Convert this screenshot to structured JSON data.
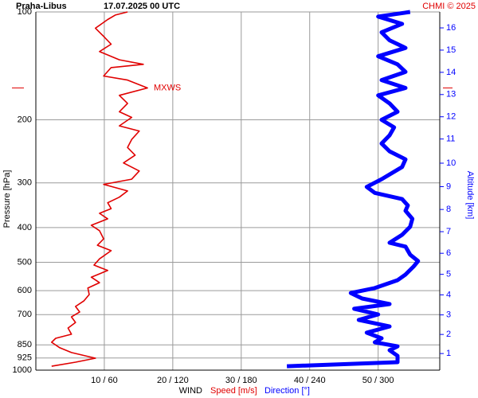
{
  "chart_data": {
    "type": "profile",
    "station": "Praha-Libus",
    "time": "17.07.2025 00 UTC",
    "credit": "CHMI © 2025",
    "ylabel": "Pressure [hPa]",
    "y2label": "Altitude [km]",
    "xlabel": "WIND",
    "ylim": [
      100,
      1000
    ],
    "y_log": true,
    "y_inverted": true,
    "yticks": [
      100,
      200,
      300,
      400,
      500,
      600,
      700,
      850,
      925,
      1000
    ],
    "xlim": [
      0,
      59
    ],
    "x2lim": [
      0,
      354
    ],
    "xticks": [
      {
        "value": 10,
        "label": "10 / 60"
      },
      {
        "value": 20,
        "label": "20 / 120"
      },
      {
        "value": 30,
        "label": "30 / 180"
      },
      {
        "value": 40,
        "label": "40 / 240"
      },
      {
        "value": 50,
        "label": "50 / 300"
      }
    ],
    "y2ticks": [
      1,
      2,
      3,
      4,
      5,
      6,
      7,
      8,
      9,
      10,
      11,
      12,
      13,
      14,
      15,
      16
    ],
    "grid": true,
    "mxws": {
      "label": "MXWS",
      "pressure": 163
    },
    "series": [
      {
        "name": "Speed [m/s]",
        "color": "#e00000",
        "pressure": [
          975,
          950,
          926,
          893,
          866,
          836,
          815,
          794,
          763,
          736,
          710,
          688,
          664,
          641,
          615,
          590,
          570,
          550,
          527,
          509,
          489,
          464,
          448,
          430,
          408,
          394,
          378,
          365,
          354,
          341,
          329,
          316,
          303,
          293,
          278,
          264,
          251,
          239,
          227,
          215,
          208,
          197,
          190,
          180,
          171,
          163,
          155,
          151,
          143,
          140,
          136,
          129,
          123,
          117,
          111,
          105,
          102,
          100
        ],
        "values": [
          2.3,
          5.8,
          8.7,
          5.2,
          3.5,
          2.3,
          2.9,
          5.2,
          4.7,
          5.8,
          5.2,
          6.4,
          5.8,
          7.0,
          7.8,
          7.6,
          9.3,
          8.1,
          10.5,
          8.5,
          9.3,
          11.0,
          9.0,
          9.9,
          9.3,
          8.1,
          10.5,
          9.3,
          11.0,
          10.5,
          12.2,
          13.4,
          9.9,
          14.0,
          15.1,
          12.8,
          14.5,
          13.4,
          14.0,
          15.1,
          12.2,
          14.0,
          12.2,
          13.4,
          12.2,
          16.3,
          13.4,
          9.9,
          11.0,
          15.7,
          12.2,
          9.3,
          11.0,
          9.9,
          8.7,
          10.5,
          11.6,
          13.4
        ]
      },
      {
        "name": "Direction [°]",
        "color": "#0000ff",
        "axis": "x2",
        "pressure": [
          975,
          950,
          912,
          880,
          858,
          836,
          815,
          786,
          755,
          724,
          699,
          674,
          654,
          631,
          609,
          590,
          561,
          541,
          514,
          496,
          476,
          452,
          441,
          419,
          398,
          378,
          359,
          347,
          333,
          320,
          308,
          293,
          271,
          258,
          245,
          233,
          221,
          210,
          200,
          190,
          180,
          171,
          163,
          155,
          147,
          140,
          133,
          126,
          120,
          114,
          108,
          103,
          100
        ],
        "values": [
          220,
          317,
          317,
          310,
          317,
          297,
          303,
          290,
          310,
          283,
          300,
          279,
          310,
          286,
          276,
          297,
          317,
          324,
          331,
          335,
          328,
          324,
          310,
          321,
          328,
          330,
          324,
          326,
          321,
          297,
          290,
          303,
          321,
          324,
          310,
          303,
          310,
          314,
          303,
          317,
          310,
          300,
          324,
          303,
          324,
          317,
          300,
          324,
          310,
          303,
          321,
          300,
          328
        ]
      }
    ]
  }
}
